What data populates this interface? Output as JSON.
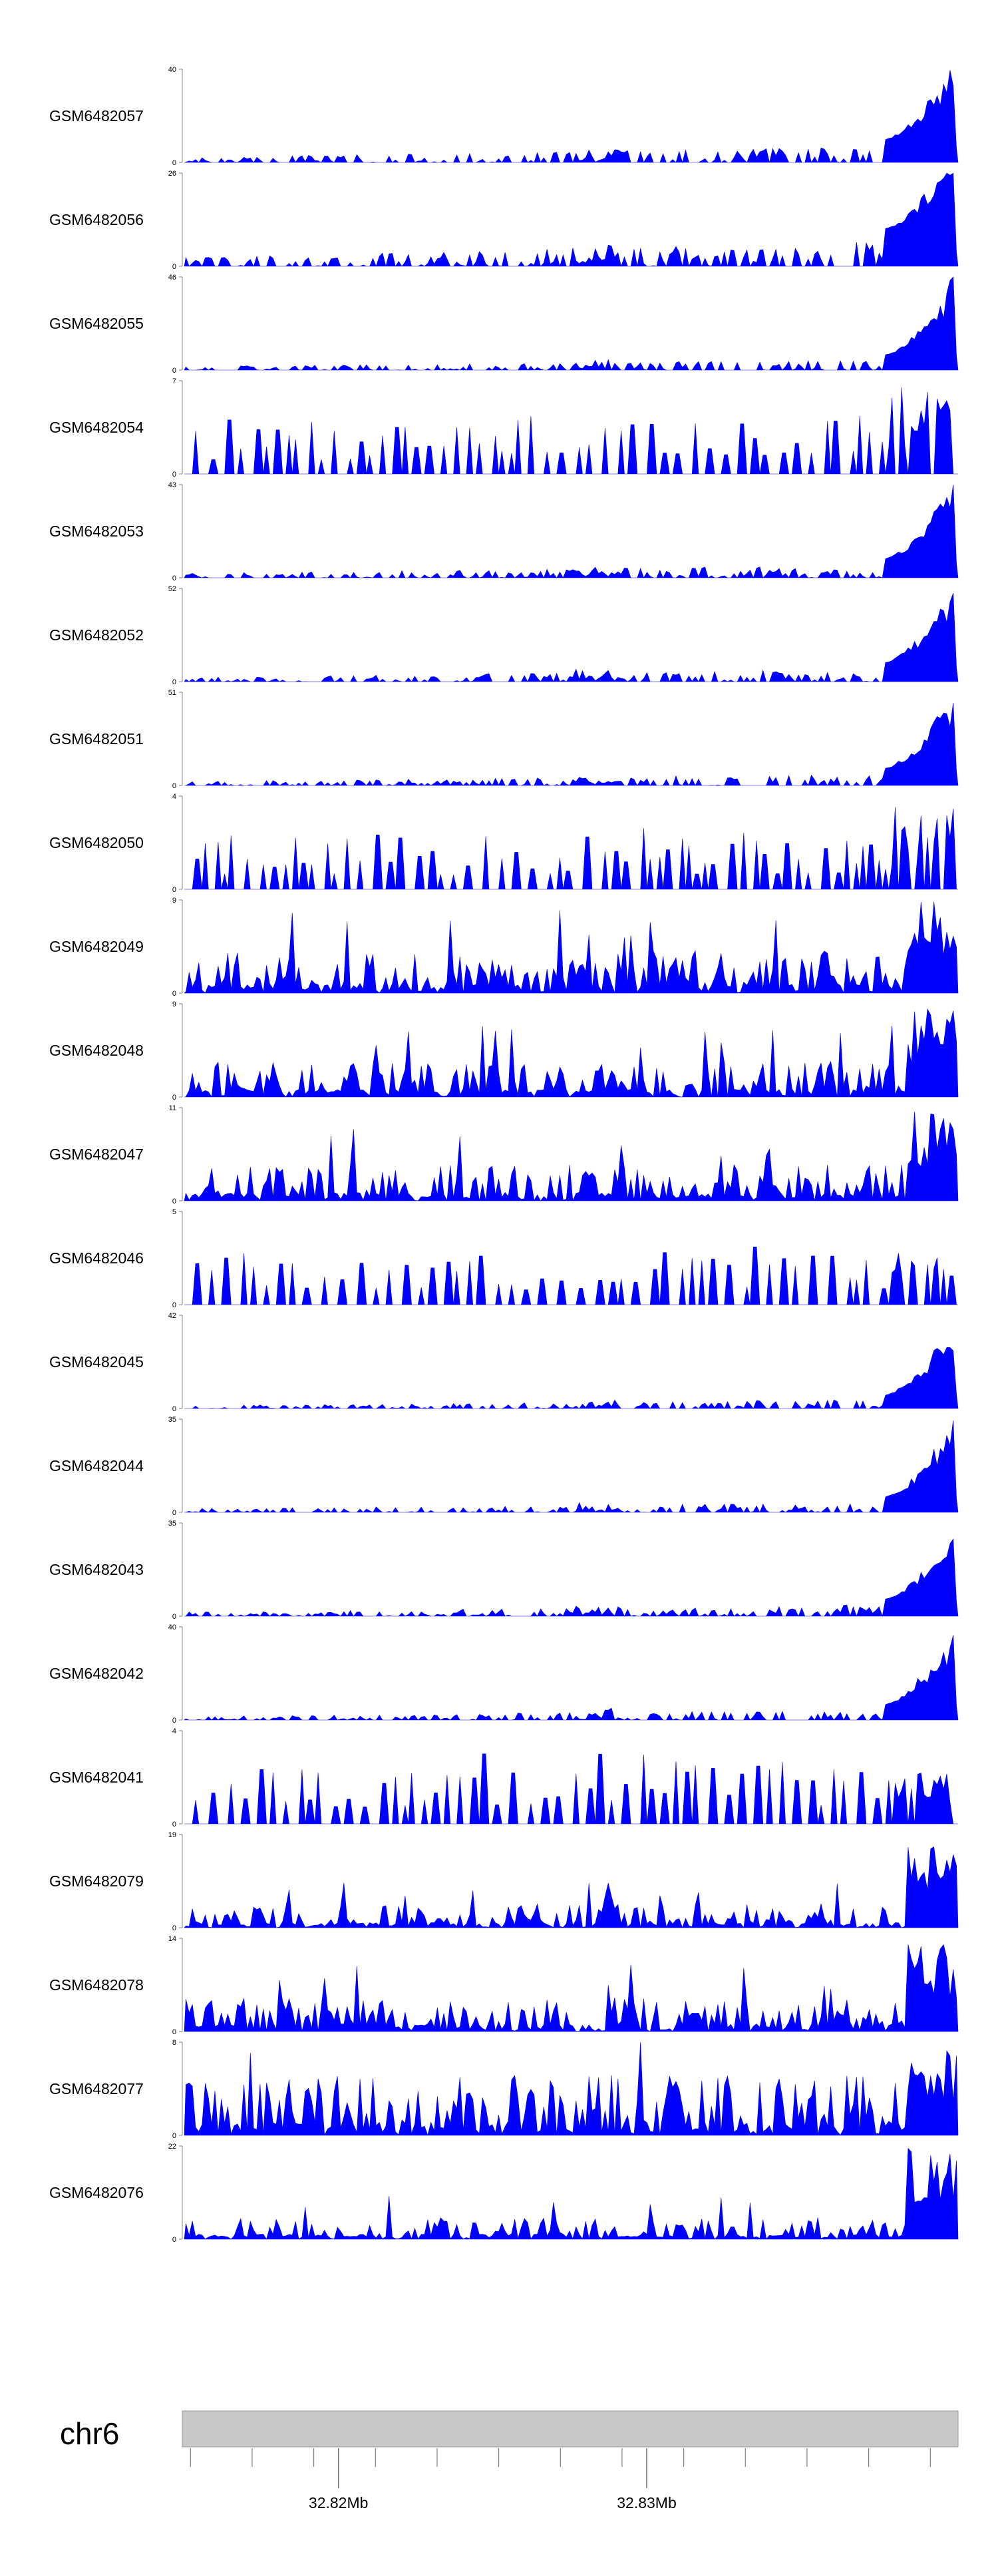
{
  "chart_data": {
    "type": "area",
    "fill_color": "#0000ff",
    "axis_color": "#808080",
    "ideogram_color": "#c8c8c8",
    "x_range_mb": [
      32.815,
      32.8401
    ],
    "tracks": [
      {
        "name": "GSM6482057",
        "ymax": "40",
        "ymin": "0",
        "ylim": [
          0,
          40
        ],
        "profile": "peak",
        "level": 0.12,
        "peak": 1.0
      },
      {
        "name": "GSM6482056",
        "ymax": "26",
        "ymin": "0",
        "ylim": [
          0,
          26
        ],
        "profile": "peak",
        "level": 0.2,
        "peak": 1.0
      },
      {
        "name": "GSM6482055",
        "ymax": "46",
        "ymin": "0",
        "ylim": [
          0,
          46
        ],
        "profile": "peak",
        "level": 0.08,
        "peak": 1.0
      },
      {
        "name": "GSM6482054",
        "ymax": "7",
        "ymin": "0",
        "ylim": [
          0,
          7
        ],
        "profile": "sparse",
        "level": 0.55,
        "peak": 1.0
      },
      {
        "name": "GSM6482053",
        "ymax": "43",
        "ymin": "0",
        "ylim": [
          0,
          43
        ],
        "profile": "peak",
        "level": 0.1,
        "peak": 1.0
      },
      {
        "name": "GSM6482052",
        "ymax": "52",
        "ymin": "0",
        "ylim": [
          0,
          52
        ],
        "profile": "peak",
        "level": 0.1,
        "peak": 1.0
      },
      {
        "name": "GSM6482051",
        "ymax": "51",
        "ymin": "0",
        "ylim": [
          0,
          51
        ],
        "profile": "peak",
        "level": 0.09,
        "peak": 1.0
      },
      {
        "name": "GSM6482050",
        "ymax": "4",
        "ymin": "0",
        "ylim": [
          0,
          4
        ],
        "profile": "sparse",
        "level": 0.55,
        "peak": 1.0
      },
      {
        "name": "GSM6482049",
        "ymax": "9",
        "ymin": "0",
        "ylim": [
          0,
          9
        ],
        "profile": "mixed",
        "level": 0.35,
        "peak": 1.0
      },
      {
        "name": "GSM6482048",
        "ymax": "9",
        "ymin": "0",
        "ylim": [
          0,
          9
        ],
        "profile": "mixed",
        "level": 0.3,
        "peak": 1.0
      },
      {
        "name": "GSM6482047",
        "ymax": "11",
        "ymin": "0",
        "ylim": [
          0,
          11
        ],
        "profile": "mixed",
        "level": 0.3,
        "peak": 1.0
      },
      {
        "name": "GSM6482046",
        "ymax": "5",
        "ymin": "0",
        "ylim": [
          0,
          5
        ],
        "profile": "sparse",
        "level": 0.5,
        "peak": 0.65
      },
      {
        "name": "GSM6482045",
        "ymax": "42",
        "ymin": "0",
        "ylim": [
          0,
          42
        ],
        "profile": "peak",
        "level": 0.07,
        "peak": 1.0
      },
      {
        "name": "GSM6482044",
        "ymax": "35",
        "ymin": "0",
        "ylim": [
          0,
          35
        ],
        "profile": "peak",
        "level": 0.08,
        "peak": 1.0
      },
      {
        "name": "GSM6482043",
        "ymax": "35",
        "ymin": "0",
        "ylim": [
          0,
          35
        ],
        "profile": "peak",
        "level": 0.09,
        "peak": 1.0
      },
      {
        "name": "GSM6482042",
        "ymax": "40",
        "ymin": "0",
        "ylim": [
          0,
          40
        ],
        "profile": "peak",
        "level": 0.08,
        "peak": 1.0
      },
      {
        "name": "GSM6482041",
        "ymax": "4",
        "ymin": "0",
        "ylim": [
          0,
          4
        ],
        "profile": "sparse",
        "level": 0.6,
        "peak": 0.6
      },
      {
        "name": "GSM6482079",
        "ymax": "19",
        "ymin": "0",
        "ylim": [
          0,
          19
        ],
        "profile": "mixed",
        "level": 0.2,
        "peak": 1.0
      },
      {
        "name": "GSM6482078",
        "ymax": "14",
        "ymin": "0",
        "ylim": [
          0,
          14
        ],
        "profile": "mixed",
        "level": 0.28,
        "peak": 1.0
      },
      {
        "name": "GSM6482077",
        "ymax": "8",
        "ymin": "0",
        "ylim": [
          0,
          8
        ],
        "profile": "mixed",
        "level": 0.5,
        "peak": 1.0
      },
      {
        "name": "GSM6482076",
        "ymax": "22",
        "ymin": "0",
        "ylim": [
          0,
          22
        ],
        "profile": "mixed",
        "level": 0.18,
        "peak": 1.0
      }
    ],
    "chromosome": "chr6",
    "axis_labels": [
      {
        "text": "32.82Mb",
        "value": 32.82
      },
      {
        "text": "32.83Mb",
        "value": 32.83
      }
    ],
    "minor_ticks_mb": [
      32.8152,
      32.8172,
      32.8192,
      32.8212,
      32.8232,
      32.8252,
      32.8272,
      32.8292,
      32.8312,
      32.8332,
      32.8352,
      32.8372,
      32.8392
    ]
  }
}
